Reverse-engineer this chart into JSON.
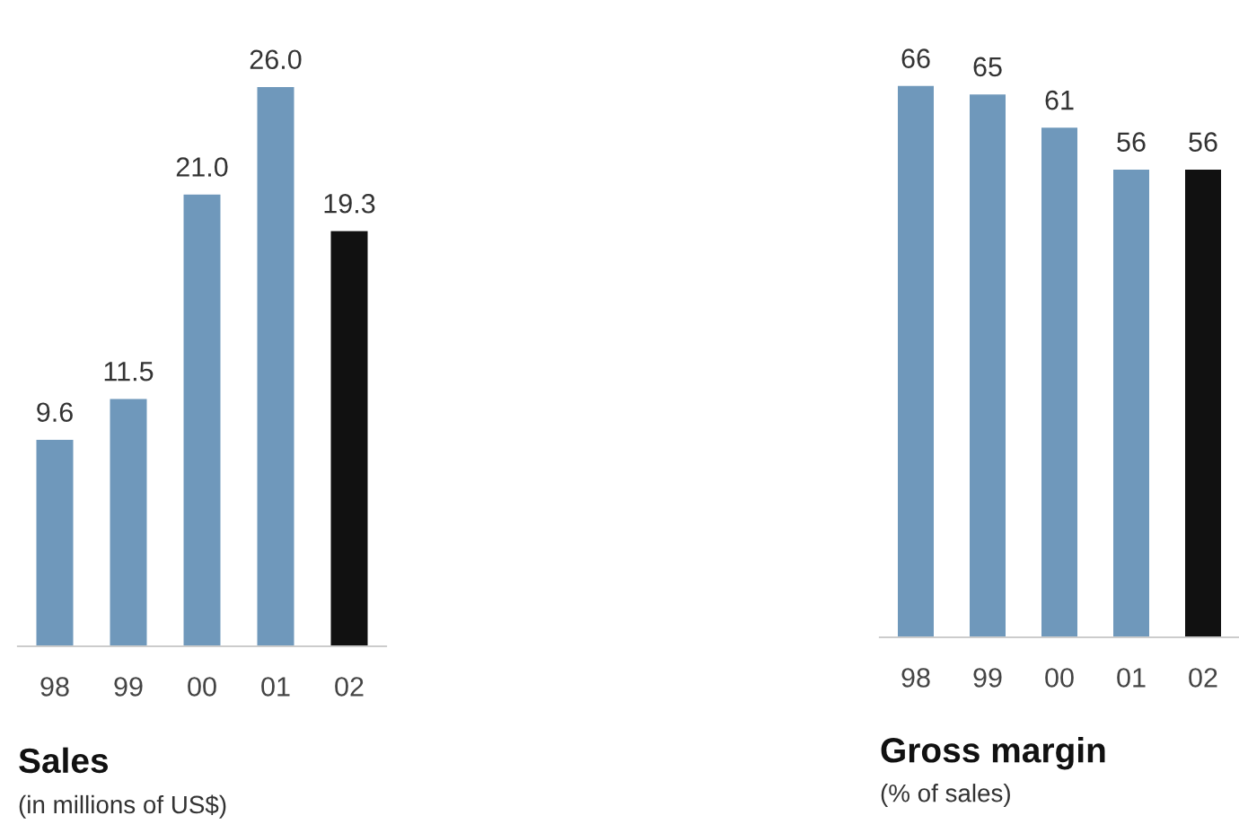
{
  "chart_data": [
    {
      "type": "bar",
      "title": "Sales",
      "subtitle": "(in millions of US$)",
      "categories": [
        "98",
        "99",
        "00",
        "01",
        "02"
      ],
      "values": [
        9.6,
        11.5,
        21.0,
        26.0,
        19.3
      ],
      "value_labels": [
        "9.6",
        "11.5",
        "21.0",
        "26.0",
        "19.3"
      ],
      "colors": [
        "#6f98bb",
        "#6f98bb",
        "#6f98bb",
        "#6f98bb",
        "#111111"
      ],
      "grid": false,
      "legend": false
    },
    {
      "type": "bar",
      "title": "Gross margin",
      "subtitle": "(% of sales)",
      "categories": [
        "98",
        "99",
        "00",
        "01",
        "02"
      ],
      "values": [
        66,
        65,
        61,
        56,
        56
      ],
      "data_labels": true,
      "colors": [
        "#6f98bb",
        "#6f98bb",
        "#6f98bb",
        "#6f98bb",
        "#111111"
      ],
      "grid": false,
      "legend": false
    }
  ]
}
